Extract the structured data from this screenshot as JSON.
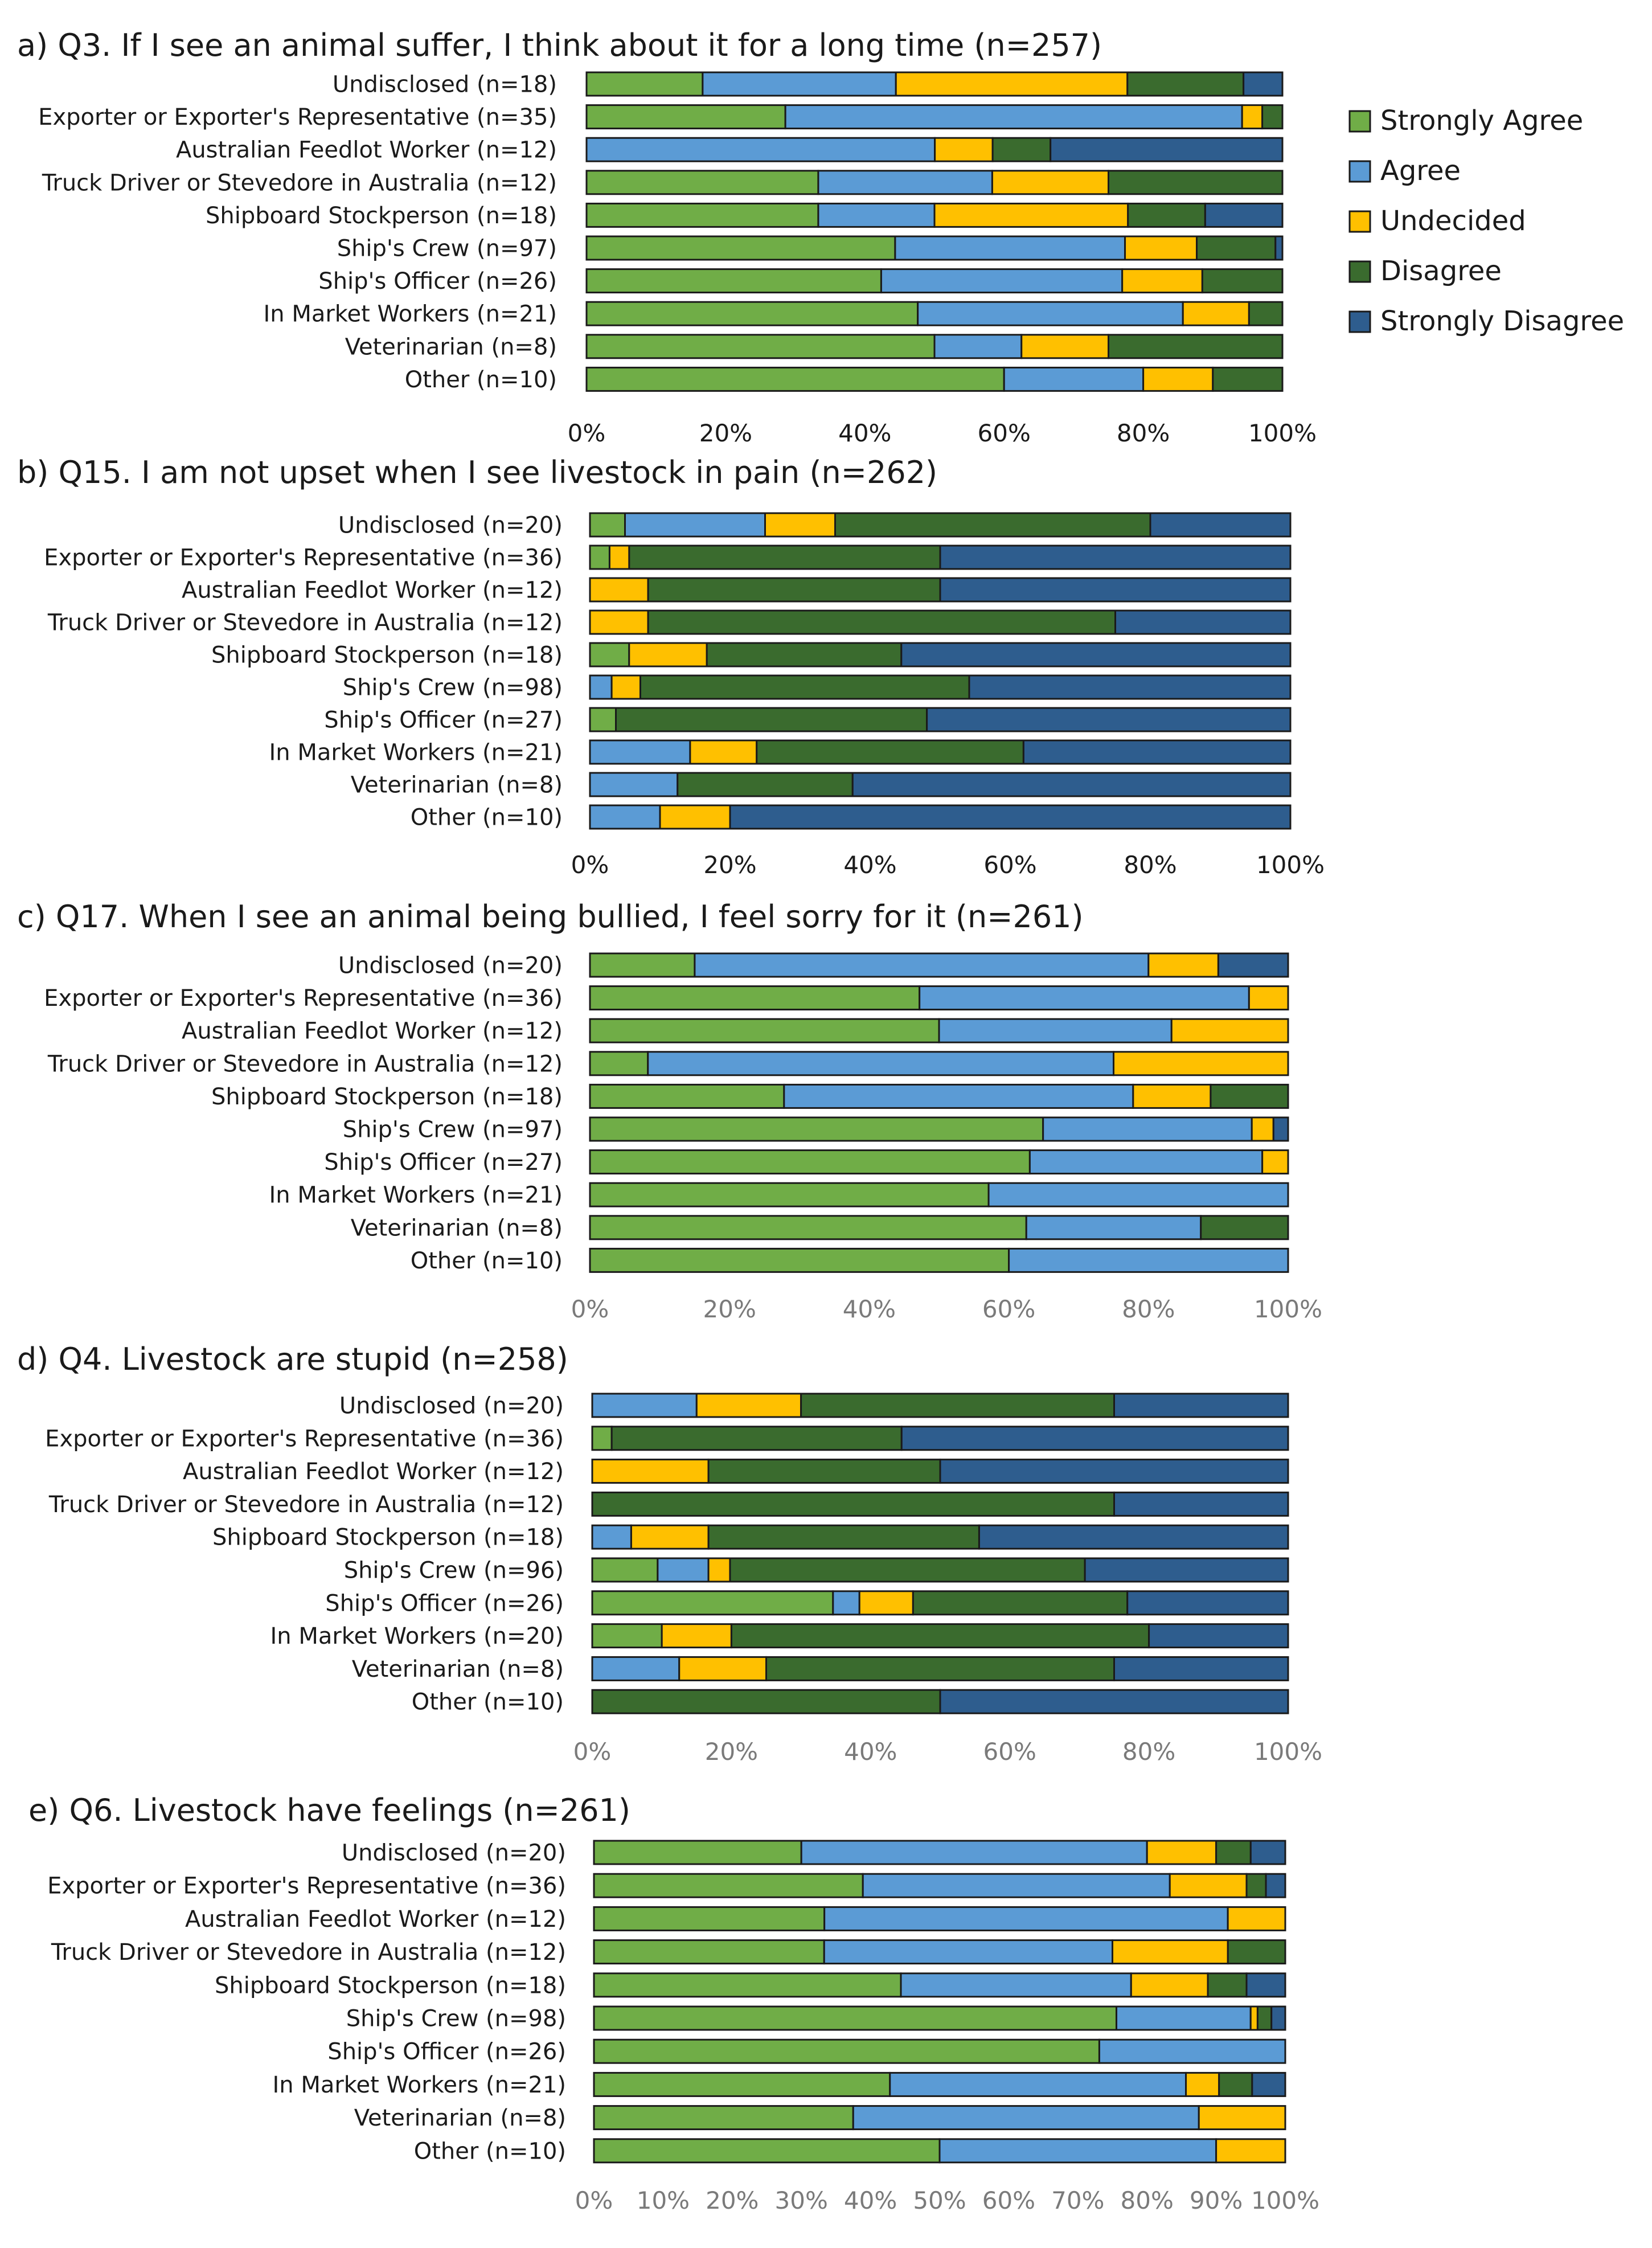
{
  "series": [
    "Strongly Agree",
    "Agree",
    "Undecided",
    "Disagree",
    "Strongly Disagree"
  ],
  "colors": {
    "Strongly Agree": "#70ad47",
    "Agree": "#5b9bd5",
    "Undecided": "#ffc000",
    "Disagree": "#3a6b2e",
    "Strongly Disagree": "#2e5d8e",
    "outline": "#1a1a1a"
  },
  "chart_data": [
    {
      "type": "bar",
      "orientation": "horizontal",
      "stacked": "percent",
      "title": "a) Q3. If I see an animal suffer, I think about it for a long time (n=257)",
      "categories": [
        "Undisclosed (n=18)",
        "Exporter or Exporter's Representative (n=35)",
        "Australian Feedlot Worker (n=12)",
        "Truck Driver or Stevedore in Australia (n=12)",
        "Shipboard Stockperson (n=18)",
        "Ship's Crew (n=97)",
        "Ship's Officer (n=26)",
        "In Market Workers (n=21)",
        "Veterinarian (n=8)",
        "Other (n=10)"
      ],
      "series": [
        {
          "name": "Strongly Agree",
          "values": [
            16.7,
            28.6,
            0,
            33.3,
            33.3,
            44.3,
            42.3,
            47.6,
            50.0,
            60.0
          ]
        },
        {
          "name": "Agree",
          "values": [
            27.8,
            65.7,
            50.0,
            25.0,
            16.7,
            33.0,
            34.6,
            38.1,
            12.5,
            20.0
          ]
        },
        {
          "name": "Undecided",
          "values": [
            33.3,
            2.9,
            8.3,
            16.7,
            27.8,
            10.3,
            11.5,
            9.5,
            12.5,
            10.0
          ]
        },
        {
          "name": "Disagree",
          "values": [
            16.7,
            2.9,
            8.3,
            25.0,
            11.1,
            11.3,
            11.5,
            4.8,
            25.0,
            10.0
          ]
        },
        {
          "name": "Strongly Disagree",
          "values": [
            5.6,
            0,
            33.3,
            0,
            11.1,
            1.0,
            0,
            0,
            0,
            0
          ]
        }
      ],
      "x_ticks": [
        "0%",
        "20%",
        "40%",
        "60%",
        "80%",
        "100%"
      ],
      "xlim": [
        0,
        100
      ]
    },
    {
      "type": "bar",
      "orientation": "horizontal",
      "stacked": "percent",
      "title": "b) Q15. I am not upset when I see livestock in pain (n=262)",
      "categories": [
        "Undisclosed (n=20)",
        "Exporter or Exporter's Representative (n=36)",
        "Australian Feedlot Worker (n=12)",
        "Truck Driver or Stevedore in Australia (n=12)",
        "Shipboard Stockperson (n=18)",
        "Ship's Crew (n=98)",
        "Ship's Officer (n=27)",
        "In Market Workers (n=21)",
        "Veterinarian (n=8)",
        "Other (n=10)"
      ],
      "series": [
        {
          "name": "Strongly Agree",
          "values": [
            5.0,
            2.8,
            0,
            0,
            5.6,
            0,
            3.7,
            0,
            0,
            0
          ]
        },
        {
          "name": "Agree",
          "values": [
            20.0,
            0,
            0,
            0,
            0,
            3.1,
            0,
            14.3,
            12.5,
            10.0
          ]
        },
        {
          "name": "Undecided",
          "values": [
            10.0,
            2.8,
            8.3,
            8.3,
            11.1,
            4.1,
            0,
            9.5,
            0,
            10.0
          ]
        },
        {
          "name": "Disagree",
          "values": [
            45.0,
            44.4,
            41.7,
            66.7,
            27.8,
            47.0,
            44.4,
            38.1,
            25.0,
            0
          ]
        },
        {
          "name": "Strongly Disagree",
          "values": [
            20.0,
            50.0,
            50.0,
            25.0,
            55.6,
            45.9,
            51.9,
            38.1,
            62.5,
            80.0
          ]
        }
      ],
      "x_ticks": [
        "0%",
        "20%",
        "40%",
        "60%",
        "80%",
        "100%"
      ],
      "xlim": [
        0,
        100
      ]
    },
    {
      "type": "bar",
      "orientation": "horizontal",
      "stacked": "percent",
      "title": "c) Q17. When I see an animal being bullied, I feel sorry for it (n=261)",
      "categories": [
        "Undisclosed (n=20)",
        "Exporter or Exporter's Representative (n=36)",
        "Australian Feedlot Worker (n=12)",
        "Truck Driver or Stevedore in Australia (n=12)",
        "Shipboard Stockperson (n=18)",
        "Ship's Crew (n=97)",
        "Ship's Officer (n=27)",
        "In Market Workers (n=21)",
        "Veterinarian (n=8)",
        "Other (n=10)"
      ],
      "series": [
        {
          "name": "Strongly Agree",
          "values": [
            15.0,
            47.2,
            50.0,
            8.3,
            27.8,
            64.9,
            63.0,
            57.1,
            62.5,
            60.0
          ]
        },
        {
          "name": "Agree",
          "values": [
            65.0,
            47.2,
            33.3,
            66.7,
            50.0,
            29.9,
            33.3,
            42.9,
            25.0,
            40.0
          ]
        },
        {
          "name": "Undecided",
          "values": [
            10.0,
            5.6,
            16.7,
            25.0,
            11.1,
            3.1,
            3.7,
            0,
            0,
            0
          ]
        },
        {
          "name": "Disagree",
          "values": [
            0,
            0,
            0,
            0,
            11.1,
            0,
            0,
            0,
            12.5,
            0
          ]
        },
        {
          "name": "Strongly Disagree",
          "values": [
            10.0,
            0,
            0,
            0,
            0,
            2.1,
            0,
            0,
            0,
            0
          ]
        }
      ],
      "x_ticks": [
        "0%",
        "20%",
        "40%",
        "60%",
        "80%",
        "100%"
      ],
      "xlim": [
        0,
        100
      ]
    },
    {
      "type": "bar",
      "orientation": "horizontal",
      "stacked": "percent",
      "title": "d) Q4. Livestock are stupid (n=258)",
      "categories": [
        "Undisclosed (n=20)",
        "Exporter or Exporter's Representative (n=36)",
        "Australian Feedlot Worker (n=12)",
        "Truck Driver or Stevedore in Australia (n=12)",
        "Shipboard Stockperson (n=18)",
        "Ship's Crew (n=96)",
        "Ship's Officer (n=26)",
        "In Market Workers (n=20)",
        "Veterinarian (n=8)",
        "Other (n=10)"
      ],
      "series": [
        {
          "name": "Strongly Agree",
          "values": [
            0,
            2.8,
            0,
            0,
            0,
            9.4,
            34.6,
            10.0,
            0,
            0
          ]
        },
        {
          "name": "Agree",
          "values": [
            15.0,
            0,
            0,
            0,
            5.6,
            7.3,
            3.8,
            0,
            12.5,
            0
          ]
        },
        {
          "name": "Undecided",
          "values": [
            15.0,
            0,
            16.7,
            0,
            11.1,
            3.1,
            7.7,
            10.0,
            12.5,
            0
          ]
        },
        {
          "name": "Disagree",
          "values": [
            45.0,
            41.7,
            33.3,
            75.0,
            38.9,
            51.0,
            30.8,
            60.0,
            50.0,
            50.0
          ]
        },
        {
          "name": "Strongly Disagree",
          "values": [
            25.0,
            55.6,
            50.0,
            25.0,
            44.4,
            29.2,
            23.1,
            20.0,
            25.0,
            50.0
          ]
        }
      ],
      "x_ticks": [
        "0%",
        "20%",
        "40%",
        "60%",
        "80%",
        "100%"
      ],
      "xlim": [
        0,
        100
      ]
    },
    {
      "type": "bar",
      "orientation": "horizontal",
      "stacked": "percent",
      "title": "e) Q6. Livestock have feelings (n=261)",
      "categories": [
        "Undisclosed (n=20)",
        "Exporter or Exporter's Representative (n=36)",
        "Australian Feedlot Worker (n=12)",
        "Truck Driver or Stevedore in Australia (n=12)",
        "Shipboard Stockperson (n=18)",
        "Ship's Crew (n=98)",
        "Ship's Officer (n=26)",
        "In Market Workers (n=21)",
        "Veterinarian (n=8)",
        "Other (n=10)"
      ],
      "series": [
        {
          "name": "Strongly Agree",
          "values": [
            30.0,
            38.9,
            33.3,
            33.3,
            44.4,
            75.5,
            73.1,
            42.9,
            37.5,
            50.0
          ]
        },
        {
          "name": "Agree",
          "values": [
            50.0,
            44.4,
            58.3,
            41.7,
            33.3,
            19.4,
            26.9,
            42.9,
            50.0,
            40.0
          ]
        },
        {
          "name": "Undecided",
          "values": [
            10.0,
            11.1,
            8.3,
            16.7,
            11.1,
            1.0,
            0,
            4.8,
            12.5,
            10.0
          ]
        },
        {
          "name": "Disagree",
          "values": [
            5.0,
            2.8,
            0,
            8.3,
            5.6,
            2.0,
            0,
            4.8,
            0,
            0
          ]
        },
        {
          "name": "Strongly Disagree",
          "values": [
            5.0,
            2.8,
            0,
            0,
            5.6,
            2.0,
            0,
            4.8,
            0,
            0
          ]
        }
      ],
      "x_ticks": [
        "0%",
        "10%",
        "20%",
        "30%",
        "40%",
        "50%",
        "60%",
        "70%",
        "80%",
        "90%",
        "100%"
      ],
      "xlim": [
        0,
        100
      ]
    }
  ]
}
